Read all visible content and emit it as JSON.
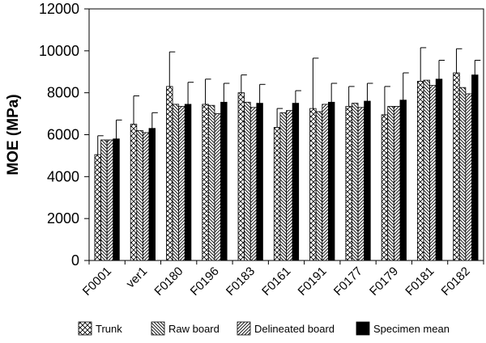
{
  "chart_data": {
    "type": "bar",
    "title": "",
    "xlabel": "",
    "ylabel": "MOE (MPa)",
    "ylim": [
      0,
      12000
    ],
    "yticks": [
      0,
      2000,
      4000,
      6000,
      8000,
      10000,
      12000
    ],
    "grid": false,
    "legend_position": "bottom",
    "error_bars": true,
    "categories": [
      "F0001",
      "ver1",
      "F0180",
      "F0196",
      "F0183",
      "F0161",
      "F0191",
      "F0177",
      "F0179",
      "F0181",
      "F0182"
    ],
    "series": [
      {
        "name": "Trunk",
        "pattern": "crosshatch",
        "values": [
          5050,
          6500,
          8300,
          7450,
          8000,
          6350,
          7250,
          7350,
          6950,
          8550,
          8950
        ],
        "errors": [
          900,
          1350,
          1650,
          1200,
          850,
          900,
          2400,
          950,
          1350,
          1600,
          1150
        ]
      },
      {
        "name": "Raw board",
        "pattern": "back-diagonal",
        "values": [
          5750,
          6200,
          7450,
          7400,
          7550,
          7050,
          7100,
          7500,
          7350,
          8600,
          8250
        ]
      },
      {
        "name": "Delineated board",
        "pattern": "forward-diagonal",
        "values": [
          5750,
          6100,
          7350,
          7000,
          7300,
          7150,
          7450,
          7300,
          7350,
          8350,
          7950
        ]
      },
      {
        "name": "Specimen mean",
        "pattern": "solid",
        "color": "#000000",
        "values": [
          5800,
          6300,
          7450,
          7550,
          7500,
          7500,
          7550,
          7600,
          7650,
          8650,
          8850
        ],
        "errors": [
          900,
          750,
          1050,
          900,
          900,
          600,
          900,
          850,
          1300,
          900,
          700
        ]
      }
    ]
  }
}
